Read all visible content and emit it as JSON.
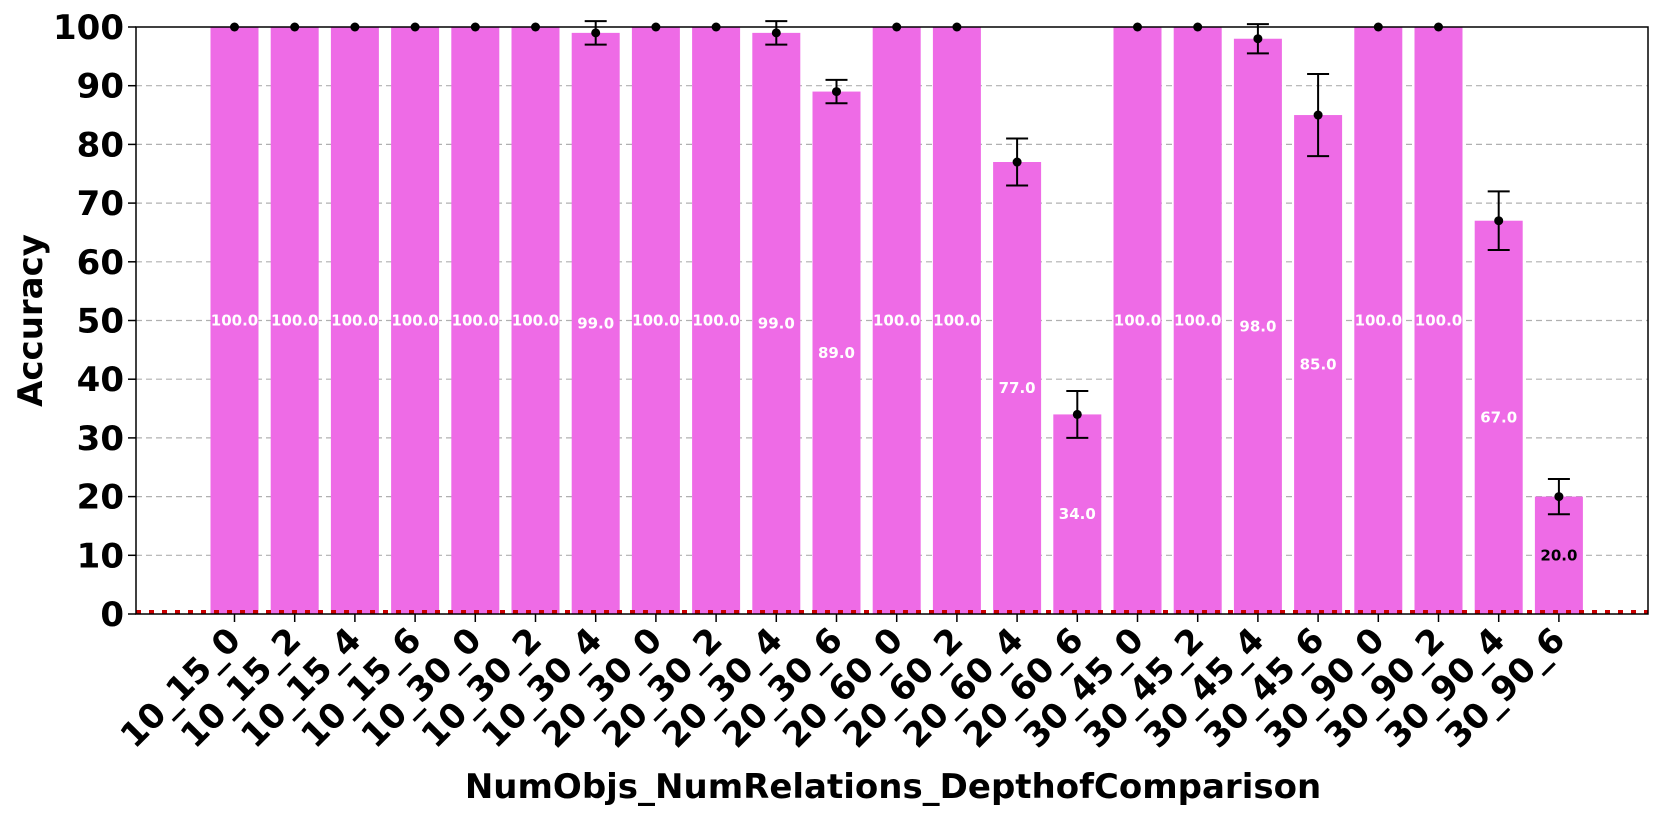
{
  "chart_data": {
    "type": "bar",
    "xlabel": "NumObjs_NumRelations_DepthofComparison",
    "ylabel": "Accuracy",
    "ylim": [
      0,
      100
    ],
    "yticks": [
      0,
      10,
      20,
      30,
      40,
      50,
      60,
      70,
      80,
      90,
      100
    ],
    "grid": "y-dashed",
    "bar_color": "#ee6be6",
    "categories": [
      "10_15_0",
      "10_15_2",
      "10_15_4",
      "10_15_6",
      "10_30_0",
      "10_30_2",
      "10_30_4",
      "20_30_0",
      "20_30_2",
      "20_30_4",
      "20_30_6",
      "20_60_0",
      "20_60_2",
      "20_60_4",
      "20_60_6",
      "30_45_0",
      "30_45_2",
      "30_45_4",
      "30_45_6",
      "30_90_0",
      "30_90_2",
      "30_90_4",
      "30_90_6"
    ],
    "values": [
      100,
      100,
      100,
      100,
      100,
      100,
      99,
      100,
      100,
      99,
      89,
      100,
      100,
      77,
      34,
      100,
      100,
      98,
      85,
      100,
      100,
      67,
      20
    ],
    "errors": [
      0,
      0,
      0,
      0,
      0,
      0,
      2,
      0,
      0,
      2,
      2,
      0,
      0,
      4,
      4,
      0,
      0,
      2.5,
      7,
      0,
      0,
      5,
      3
    ],
    "data_labels": [
      "100.0",
      "100.0",
      "100.0",
      "100.0",
      "100.0",
      "100.0",
      "99.0",
      "100.0",
      "100.0",
      "99.0",
      "89.0",
      "100.0",
      "100.0",
      "77.0",
      "34.0",
      "100.0",
      "100.0",
      "98.0",
      "85.0",
      "100.0",
      "100.0",
      "67.0",
      "20.0"
    ],
    "baseline_color": "#cc0000"
  }
}
